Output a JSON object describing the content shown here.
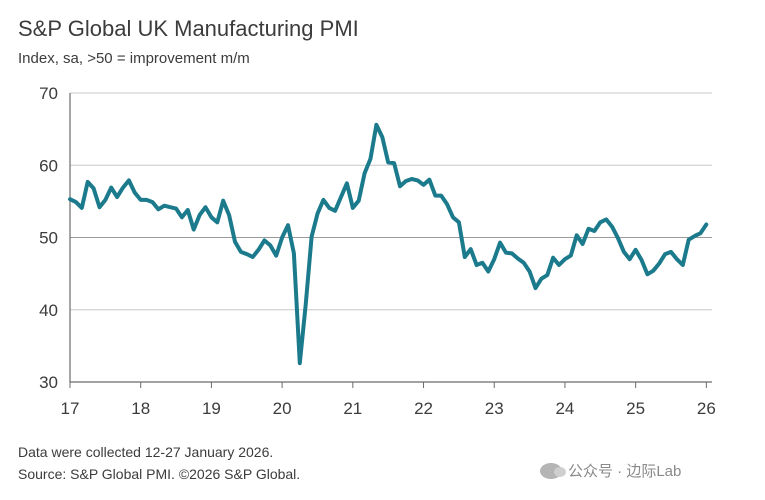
{
  "header": {
    "title": "S&P Global UK Manufacturing PMI",
    "subtitle": "Index, sa, >50 = improvement m/m"
  },
  "footer": {
    "note": "Data were collected 12-27 January 2026.",
    "source": "Source: S&P Global PMI. ©2026 S&P Global."
  },
  "watermark": {
    "text": "公众号 · 边际Lab"
  },
  "colors": {
    "line": "#1b7a8c",
    "axis": "#6b6b6b",
    "grid": "#c8c8c8",
    "text": "#3c3c3c"
  },
  "chart_data": {
    "type": "line",
    "title": "S&P Global UK Manufacturing PMI",
    "subtitle": "Index, sa, >50 = improvement m/m",
    "xlabel": "",
    "ylabel": "",
    "xlim": [
      2017,
      2026.08
    ],
    "ylim": [
      30,
      70
    ],
    "yticks": [
      30,
      40,
      50,
      60,
      70
    ],
    "xticks": [
      17,
      18,
      19,
      20,
      21,
      22,
      23,
      24,
      25,
      26
    ],
    "xtick_labels": [
      "17",
      "18",
      "19",
      "20",
      "21",
      "22",
      "23",
      "24",
      "25",
      "26"
    ],
    "grid": "horizontal",
    "reference_line": 50,
    "series": [
      {
        "name": "UK Manufacturing PMI",
        "start": "2017-01",
        "values": [
          55.3,
          54.9,
          54.1,
          57.7,
          56.8,
          54.2,
          55.2,
          56.9,
          55.6,
          56.9,
          57.9,
          56.2,
          55.2,
          55.2,
          54.9,
          53.9,
          54.4,
          54.2,
          54.0,
          52.8,
          53.8,
          51.1,
          53.1,
          54.2,
          52.8,
          52.1,
          55.1,
          53.1,
          49.4,
          48.0,
          47.7,
          47.3,
          48.3,
          49.6,
          48.9,
          47.5,
          50.0,
          51.7,
          47.8,
          32.6,
          40.7,
          50.1,
          53.3,
          55.2,
          54.1,
          53.7,
          55.6,
          57.5,
          54.1,
          55.1,
          58.9,
          60.9,
          65.6,
          63.9,
          60.4,
          60.3,
          57.1,
          57.8,
          58.1,
          57.9,
          57.3,
          58.0,
          55.8,
          55.8,
          54.6,
          52.8,
          52.1,
          47.3,
          48.4,
          46.2,
          46.5,
          45.3,
          47.0,
          49.3,
          47.9,
          47.8,
          47.1,
          46.5,
          45.3,
          43.0,
          44.3,
          44.8,
          47.2,
          46.2,
          47.0,
          47.5,
          50.3,
          49.1,
          51.2,
          50.9,
          52.1,
          52.5,
          51.5,
          49.9,
          48.0,
          47.0,
          48.3,
          46.9,
          44.9,
          45.4,
          46.4,
          47.7,
          48.0,
          47.0,
          46.2,
          49.7,
          50.2,
          50.6,
          51.8
        ]
      }
    ]
  }
}
